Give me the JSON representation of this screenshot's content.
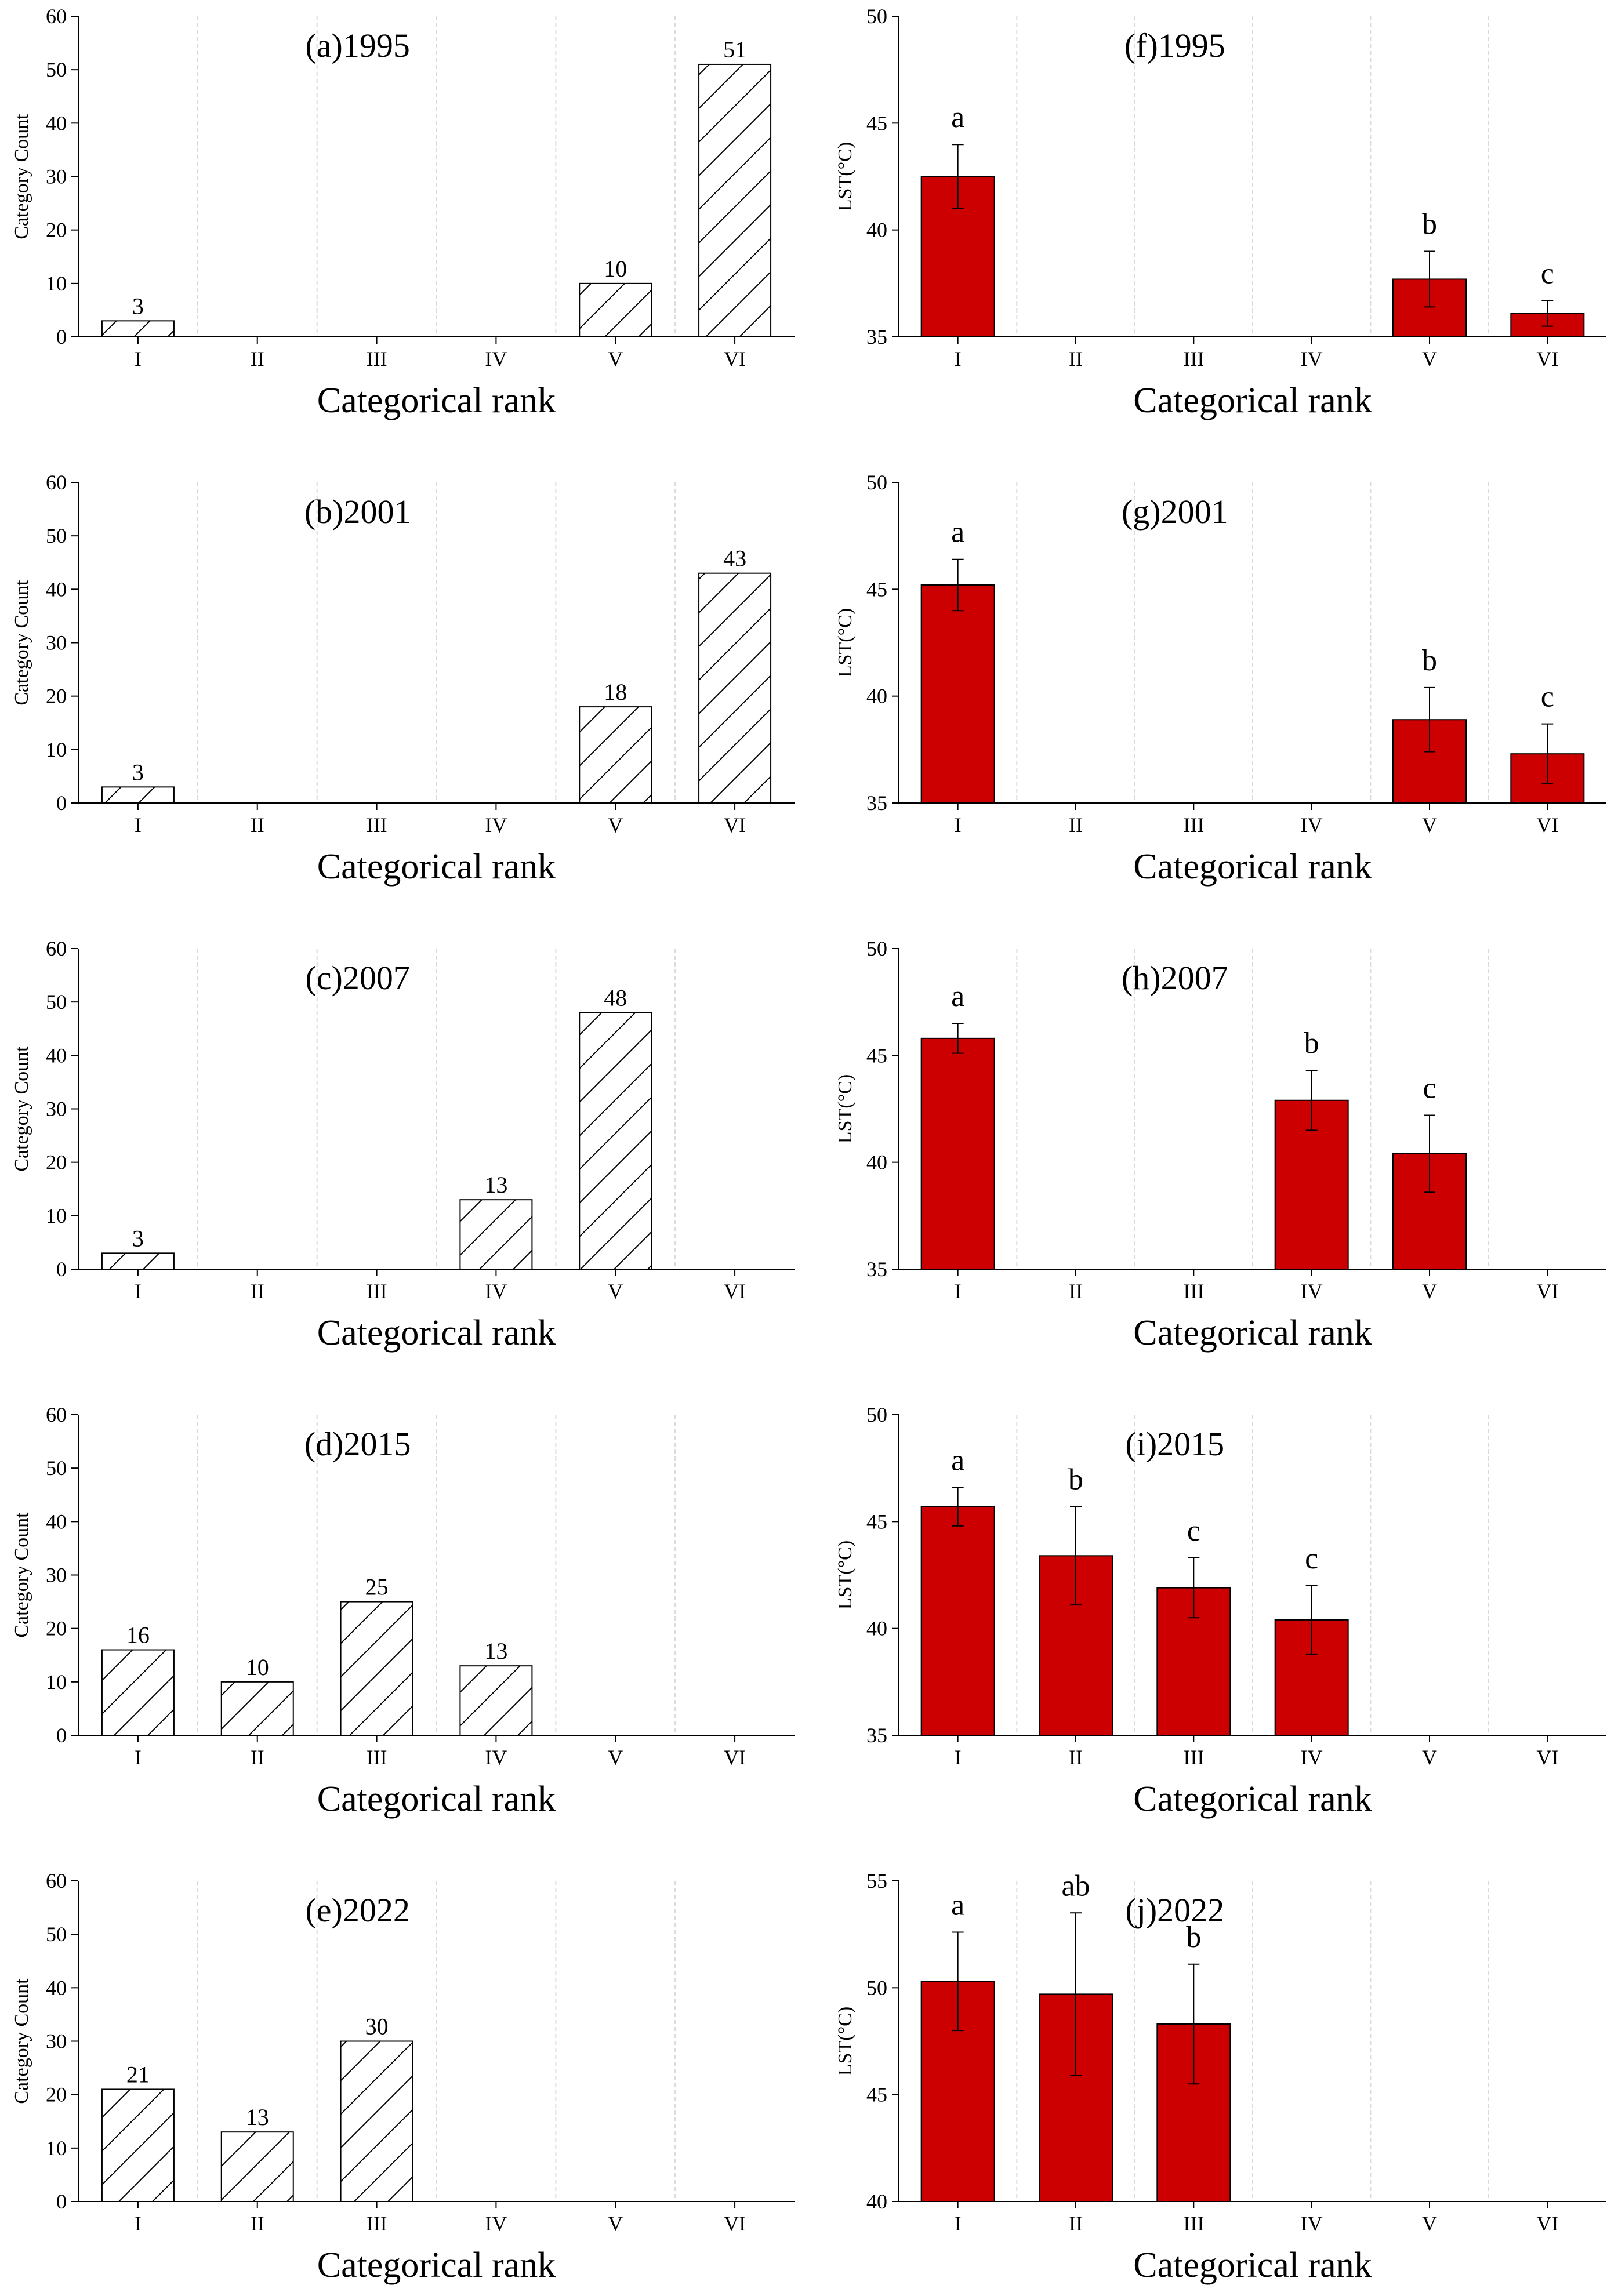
{
  "chart_data": [
    {
      "id": "a",
      "type": "bar",
      "title": "(a)1995",
      "xlabel": "Categorical rank",
      "ylabel": "Category Count",
      "ylim": [
        0,
        60
      ],
      "yticks": [
        0,
        10,
        20,
        30,
        40,
        50,
        60
      ],
      "categories": [
        "I",
        "II",
        "III",
        "IV",
        "V",
        "VI"
      ],
      "values": [
        3,
        null,
        null,
        null,
        10,
        51
      ],
      "value_labels": [
        "3",
        "",
        "",
        "",
        "10",
        "51"
      ],
      "fill": "hatch",
      "grid": "vertical dashed"
    },
    {
      "id": "b",
      "type": "bar",
      "title": "(b)2001",
      "xlabel": "Categorical rank",
      "ylabel": "Category Count",
      "ylim": [
        0,
        60
      ],
      "yticks": [
        0,
        10,
        20,
        30,
        40,
        50,
        60
      ],
      "categories": [
        "I",
        "II",
        "III",
        "IV",
        "V",
        "VI"
      ],
      "values": [
        3,
        null,
        null,
        null,
        18,
        43
      ],
      "value_labels": [
        "3",
        "",
        "",
        "",
        "18",
        "43"
      ],
      "fill": "hatch",
      "grid": "vertical dashed"
    },
    {
      "id": "c",
      "type": "bar",
      "title": "(c)2007",
      "xlabel": "Categorical rank",
      "ylabel": "Category Count",
      "ylim": [
        0,
        60
      ],
      "yticks": [
        0,
        10,
        20,
        30,
        40,
        50,
        60
      ],
      "categories": [
        "I",
        "II",
        "III",
        "IV",
        "V",
        "VI"
      ],
      "values": [
        3,
        null,
        null,
        13,
        48,
        null
      ],
      "value_labels": [
        "3",
        "",
        "",
        "13",
        "48",
        ""
      ],
      "fill": "hatch",
      "grid": "vertical dashed"
    },
    {
      "id": "d",
      "type": "bar",
      "title": "(d)2015",
      "xlabel": "Categorical rank",
      "ylabel": "Category Count",
      "ylim": [
        0,
        60
      ],
      "yticks": [
        0,
        10,
        20,
        30,
        40,
        50,
        60
      ],
      "categories": [
        "I",
        "II",
        "III",
        "IV",
        "V",
        "VI"
      ],
      "values": [
        16,
        10,
        25,
        13,
        null,
        null
      ],
      "value_labels": [
        "16",
        "10",
        "25",
        "13",
        "",
        ""
      ],
      "fill": "hatch",
      "grid": "vertical dashed"
    },
    {
      "id": "e",
      "type": "bar",
      "title": "(e)2022",
      "xlabel": "Categorical rank",
      "ylabel": "Category Count",
      "ylim": [
        0,
        60
      ],
      "yticks": [
        0,
        10,
        20,
        30,
        40,
        50,
        60
      ],
      "categories": [
        "I",
        "II",
        "III",
        "IV",
        "V",
        "VI"
      ],
      "values": [
        21,
        13,
        30,
        null,
        null,
        null
      ],
      "value_labels": [
        "21",
        "13",
        "30",
        "",
        "",
        ""
      ],
      "fill": "hatch",
      "grid": "vertical dashed"
    },
    {
      "id": "f",
      "type": "bar",
      "title": "(f)1995",
      "xlabel": "Categorical rank",
      "ylabel": "LST(°C)",
      "ylim": [
        35,
        50
      ],
      "yticks": [
        35,
        40,
        45,
        50
      ],
      "categories": [
        "I",
        "II",
        "III",
        "IV",
        "V",
        "VI"
      ],
      "values": [
        42.5,
        null,
        null,
        null,
        37.7,
        36.1
      ],
      "errors": [
        1.5,
        null,
        null,
        null,
        1.3,
        0.6
      ],
      "value_labels": [
        "a",
        "",
        "",
        "",
        "b",
        "c"
      ],
      "fill": "#cc0000",
      "grid": "vertical dashed"
    },
    {
      "id": "g",
      "type": "bar",
      "title": "(g)2001",
      "xlabel": "Categorical rank",
      "ylabel": "LST(°C)",
      "ylim": [
        35,
        50
      ],
      "yticks": [
        35,
        40,
        45,
        50
      ],
      "categories": [
        "I",
        "II",
        "III",
        "IV",
        "V",
        "VI"
      ],
      "values": [
        45.2,
        null,
        null,
        null,
        38.9,
        37.3
      ],
      "errors": [
        1.2,
        null,
        null,
        null,
        1.5,
        1.4
      ],
      "value_labels": [
        "a",
        "",
        "",
        "",
        "b",
        "c"
      ],
      "fill": "#cc0000",
      "grid": "vertical dashed"
    },
    {
      "id": "h",
      "type": "bar",
      "title": "(h)2007",
      "xlabel": "Categorical rank",
      "ylabel": "LST(°C)",
      "ylim": [
        35,
        50
      ],
      "yticks": [
        35,
        40,
        45,
        50
      ],
      "categories": [
        "I",
        "II",
        "III",
        "IV",
        "V",
        "VI"
      ],
      "values": [
        45.8,
        null,
        null,
        42.9,
        40.4,
        null
      ],
      "errors": [
        0.7,
        null,
        null,
        1.4,
        1.8,
        null
      ],
      "value_labels": [
        "a",
        "",
        "",
        "b",
        "c",
        ""
      ],
      "fill": "#cc0000",
      "grid": "vertical dashed"
    },
    {
      "id": "i",
      "type": "bar",
      "title": "(i)2015",
      "xlabel": "Categorical rank",
      "ylabel": "LST(°C)",
      "ylim": [
        35,
        50
      ],
      "yticks": [
        35,
        40,
        45,
        50
      ],
      "categories": [
        "I",
        "II",
        "III",
        "IV",
        "V",
        "VI"
      ],
      "values": [
        45.7,
        43.4,
        41.9,
        40.4,
        null,
        null
      ],
      "errors": [
        0.9,
        2.3,
        1.4,
        1.6,
        null,
        null
      ],
      "value_labels": [
        "a",
        "b",
        "c",
        "c",
        "",
        ""
      ],
      "fill": "#cc0000",
      "grid": "vertical dashed"
    },
    {
      "id": "j",
      "type": "bar",
      "title": "(j)2022",
      "xlabel": "Categorical rank",
      "ylabel": "LST(°C)",
      "ylim": [
        40,
        55
      ],
      "yticks": [
        40,
        45,
        50,
        55
      ],
      "categories": [
        "I",
        "II",
        "III",
        "IV",
        "V",
        "VI"
      ],
      "values": [
        50.3,
        49.7,
        48.3,
        null,
        null,
        null
      ],
      "errors": [
        2.3,
        3.8,
        2.8,
        null,
        null,
        null
      ],
      "value_labels": [
        "a",
        "ab",
        "b",
        "",
        "",
        ""
      ],
      "fill": "#cc0000",
      "grid": "vertical dashed"
    }
  ]
}
